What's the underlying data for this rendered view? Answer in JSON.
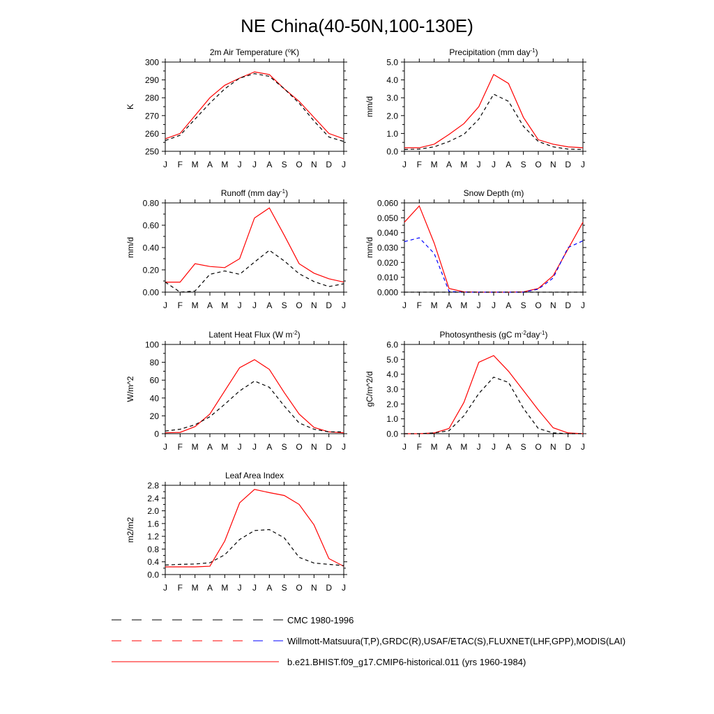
{
  "page_title": "NE China(40-50N,100-130E)",
  "colors": {
    "model": "#ff0000",
    "obs": "#000000",
    "cmc": "#0000ff"
  },
  "months": [
    "J",
    "F",
    "M",
    "A",
    "M",
    "J",
    "J",
    "A",
    "S",
    "O",
    "N",
    "D",
    "J"
  ],
  "chart_data": [
    {
      "type": "line",
      "title": "2m Air Temperature (",
      "title_sup": "o",
      "title_end": "K)",
      "ylabel": "K",
      "ylim": [
        250,
        300
      ],
      "ytick_labels": [
        "250",
        "260",
        "270",
        "280",
        "290",
        "300"
      ],
      "series": [
        {
          "role": "model",
          "values": [
            257,
            260,
            270,
            280,
            287,
            291,
            294.5,
            293,
            285,
            278,
            269,
            260,
            257
          ]
        },
        {
          "role": "obs",
          "values": [
            256,
            259,
            268,
            277,
            285,
            291,
            293.5,
            292,
            285,
            277,
            267,
            258,
            255.5
          ]
        }
      ]
    },
    {
      "type": "line",
      "title": "Precipitation (mm day",
      "title_sup": "-1",
      "title_end": ")",
      "ylabel": "mm/d",
      "ylim": [
        0,
        5
      ],
      "ytick_labels": [
        "0.0",
        "1.0",
        "2.0",
        "3.0",
        "4.0",
        "5.0"
      ],
      "series": [
        {
          "role": "model",
          "values": [
            0.2,
            0.2,
            0.4,
            0.95,
            1.55,
            2.5,
            4.3,
            3.8,
            1.9,
            0.65,
            0.4,
            0.25,
            0.2
          ]
        },
        {
          "role": "obs",
          "values": [
            0.1,
            0.12,
            0.25,
            0.55,
            0.95,
            1.8,
            3.2,
            2.8,
            1.4,
            0.55,
            0.25,
            0.12,
            0.1
          ]
        }
      ]
    },
    {
      "type": "line",
      "title": "Runoff (mm day",
      "title_sup": "-1",
      "title_end": ")",
      "ylabel": "mm/d",
      "ylim": [
        0,
        0.8
      ],
      "ytick_labels": [
        "0.00",
        "0.20",
        "0.40",
        "0.60",
        "0.80"
      ],
      "series": [
        {
          "role": "model",
          "values": [
            0.09,
            0.09,
            0.255,
            0.23,
            0.22,
            0.3,
            0.665,
            0.755,
            0.51,
            0.255,
            0.17,
            0.12,
            0.09
          ]
        },
        {
          "role": "obs",
          "values": [
            0.09,
            0.0,
            0.01,
            0.16,
            0.19,
            0.16,
            0.27,
            0.375,
            0.28,
            0.165,
            0.095,
            0.05,
            0.075
          ]
        }
      ]
    },
    {
      "type": "line",
      "title": "Snow Depth (m)",
      "title_sup": "",
      "title_end": "",
      "ylabel": "mm/d",
      "ylim": [
        0,
        0.06
      ],
      "ytick_labels": [
        "0.000",
        "0.010",
        "0.020",
        "0.030",
        "0.040",
        "0.050",
        "0.060"
      ],
      "series": [
        {
          "role": "model",
          "values": [
            0.047,
            0.058,
            0.033,
            0.0025,
            0.0002,
            0,
            0,
            0,
            0.0002,
            0.0025,
            0.011,
            0.029,
            0.047
          ]
        },
        {
          "role": "cmc",
          "values": [
            0.034,
            0.0365,
            0.026,
            0.0005,
            0,
            0,
            0,
            0,
            0,
            0.002,
            0.0095,
            0.03,
            0.0345
          ]
        },
        {
          "role": "obs",
          "values": [
            0,
            0,
            0,
            0,
            0,
            0,
            0,
            0,
            0,
            0,
            0,
            0,
            0
          ]
        }
      ]
    },
    {
      "type": "line",
      "title": "Latent Heat Flux (W m",
      "title_sup": "-2",
      "title_end": ")",
      "ylabel": "W/m^2",
      "ylim": [
        0,
        100
      ],
      "ytick_labels": [
        "0",
        "20",
        "40",
        "60",
        "80",
        "100"
      ],
      "series": [
        {
          "role": "model",
          "values": [
            1,
            1.5,
            8,
            22,
            48,
            74,
            83,
            72,
            46,
            22,
            7,
            2,
            1
          ]
        },
        {
          "role": "obs",
          "values": [
            3,
            5,
            10,
            19,
            33,
            48,
            59,
            52,
            31,
            12,
            5,
            2,
            2
          ]
        }
      ]
    },
    {
      "type": "line",
      "title": "Photosynthesis (gC m",
      "title_sup": "-2",
      "title_end": "day",
      "title_sup2": "-1",
      "title_end2": ")",
      "ylabel": "gC/m^2/d",
      "ylim": [
        0,
        6
      ],
      "ytick_labels": [
        "0.0",
        "1.0",
        "2.0",
        "3.0",
        "4.0",
        "5.0",
        "6.0"
      ],
      "series": [
        {
          "role": "model",
          "values": [
            0,
            0,
            0.05,
            0.35,
            2.1,
            4.8,
            5.25,
            4.2,
            2.9,
            1.6,
            0.4,
            0.05,
            0
          ]
        },
        {
          "role": "obs",
          "values": [
            0,
            0,
            0.05,
            0.2,
            1.2,
            2.7,
            3.8,
            3.45,
            1.7,
            0.35,
            0.05,
            0,
            0
          ]
        }
      ]
    },
    {
      "type": "line",
      "title": "Leaf Area Index",
      "title_sup": "",
      "title_end": "",
      "ylabel": "m2/m2",
      "ylim": [
        0,
        2.8
      ],
      "ytick_labels": [
        "0.0",
        "0.4",
        "0.8",
        "1.2",
        "1.6",
        "2.0",
        "2.4",
        "2.8"
      ],
      "series": [
        {
          "role": "model",
          "values": [
            0.24,
            0.24,
            0.24,
            0.26,
            1.05,
            2.25,
            2.67,
            2.57,
            2.48,
            2.2,
            1.56,
            0.5,
            0.26
          ]
        },
        {
          "role": "obs",
          "values": [
            0.3,
            0.32,
            0.33,
            0.37,
            0.62,
            1.1,
            1.38,
            1.41,
            1.15,
            0.54,
            0.36,
            0.32,
            0.28
          ]
        }
      ]
    }
  ],
  "legend": [
    {
      "label": "CMC 1980-1996",
      "style": "dash",
      "color": "#000000",
      "color2": "#000000"
    },
    {
      "label": "Willmott-Matsuura(T,P),GRDC(R),USAF/ETAC(S),FLUXNET(LHF,GPP),MODIS(LAI)",
      "style": "dash",
      "color": "#ff0000",
      "color2": "#0000ff"
    },
    {
      "label": "b.e21.BHIST.f09_g17.CMIP6-historical.011 (yrs 1960-1984)",
      "style": "solid",
      "color": "#ff0000",
      "color2": "#ff0000"
    }
  ]
}
